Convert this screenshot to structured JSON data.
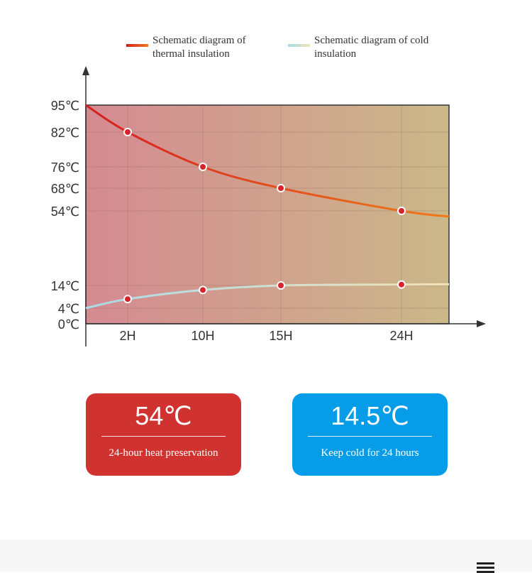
{
  "chart_data": {
    "type": "line",
    "x": [
      0,
      2,
      10,
      15,
      24
    ],
    "x_tick_labels": [
      "2H",
      "10H",
      "15H",
      "24H"
    ],
    "x_tick_values": [
      2,
      10,
      15,
      24
    ],
    "y_tick_labels": [
      "95℃",
      "82℃",
      "76℃",
      "68℃",
      "54℃",
      "14℃",
      "4℃",
      "0℃"
    ],
    "y_tick_values": [
      95,
      82,
      76,
      68,
      54,
      14,
      4,
      0
    ],
    "series": [
      {
        "name": "Schematic diagram of thermal insulation",
        "points_x": [
          0,
          2,
          10,
          15,
          24
        ],
        "values": [
          95,
          82,
          76,
          68,
          54
        ],
        "color_start": "#d41f1f",
        "color_end": "#f07a1a"
      },
      {
        "name": "Schematic diagram of cold insulation",
        "points_x": [
          0,
          2,
          10,
          15,
          24
        ],
        "values": [
          4,
          8,
          12,
          14,
          14.5
        ],
        "color_start": "#a8dbe8",
        "color_end": "#f4e3b8"
      }
    ],
    "legend": [
      {
        "line1": "Schematic diagram of",
        "line2": "thermal insulation"
      },
      {
        "line1": "Schematic diagram of cold",
        "line2": "insulation"
      }
    ],
    "legend_position": "top",
    "grid": true,
    "background_gradient": [
      "#d58a92",
      "#cbb889"
    ]
  },
  "cards": {
    "heat": {
      "value": "54℃",
      "caption": "24-hour heat preservation",
      "color": "#d0332f"
    },
    "cold": {
      "value": "14.5℃",
      "caption": "Keep cold for 24 hours",
      "color": "#079ce8"
    }
  }
}
